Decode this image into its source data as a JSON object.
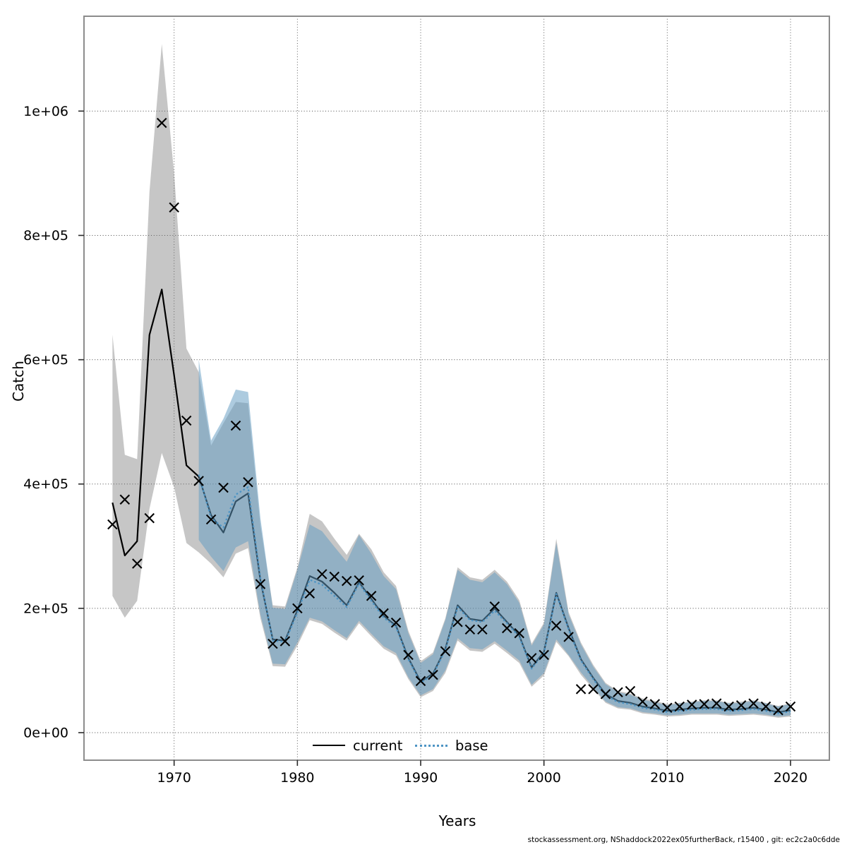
{
  "figure": {
    "xlabel": "Years",
    "ylabel": "Catch",
    "footer": "stockassessment.org, NShaddock2022ex05furtherBack, r15400 , git: ec2c2a0c6dde"
  },
  "chart_data": {
    "type": "line",
    "title": "",
    "xlabel": "Years",
    "ylabel": "Catch",
    "grid": true,
    "legend_position": "bottom-center-inside",
    "xlim": [
      1962.69,
      2023.15
    ],
    "ylim": [
      -44300,
      1152600
    ],
    "x_ticks": [
      {
        "value": 1970,
        "label": "1970"
      },
      {
        "value": 1980,
        "label": "1980"
      },
      {
        "value": 1990,
        "label": "1990"
      },
      {
        "value": 2000,
        "label": "2000"
      },
      {
        "value": 2010,
        "label": "2010"
      },
      {
        "value": 2020,
        "label": "2020"
      }
    ],
    "y_ticks": [
      {
        "value": 0,
        "label": "0e+00"
      },
      {
        "value": 200000,
        "label": "2e+05"
      },
      {
        "value": 400000,
        "label": "4e+05"
      },
      {
        "value": 600000,
        "label": "6e+05"
      },
      {
        "value": 800000,
        "label": "8e+05"
      },
      {
        "value": 1000000,
        "label": "1e+06"
      }
    ],
    "colors": {
      "current_line": "#000000",
      "current_band": "rgba(120,120,120,0.42)",
      "base_line": "#4d94c4",
      "base_band": "rgba(98,156,194,0.52)",
      "marker": "#000000",
      "grid": "#4a4a4a",
      "frame": "#8c8c8c"
    },
    "legend": {
      "entries": [
        {
          "label": "current",
          "line_style": "solid",
          "color": "#000000"
        },
        {
          "label": "base",
          "line_style": "dotted",
          "color": "#4d94c4"
        }
      ]
    },
    "series": [
      {
        "name": "observed-catch",
        "type": "scatter",
        "marker": "x",
        "years": [
          1965,
          1966,
          1967,
          1968,
          1969,
          1970,
          1971,
          1972,
          1973,
          1974,
          1975,
          1976,
          1977,
          1978,
          1979,
          1980,
          1981,
          1982,
          1983,
          1984,
          1985,
          1986,
          1987,
          1988,
          1989,
          1990,
          1991,
          1992,
          1993,
          1994,
          1995,
          1996,
          1997,
          1998,
          1999,
          2000,
          2001,
          2002,
          2003,
          2004,
          2005,
          2006,
          2007,
          2008,
          2009,
          2010,
          2011,
          2012,
          2013,
          2014,
          2015,
          2016,
          2017,
          2018,
          2019,
          2020
        ],
        "values": [
          335000,
          375000,
          272000,
          345000,
          981000,
          845000,
          502000,
          405000,
          343000,
          394000,
          494000,
          403000,
          239000,
          143000,
          147000,
          200000,
          224000,
          255000,
          251000,
          244000,
          245000,
          220000,
          192000,
          177000,
          125000,
          83000,
          93000,
          131000,
          178000,
          166000,
          166000,
          203000,
          168000,
          160000,
          120000,
          125000,
          172000,
          154000,
          70000,
          70000,
          62000,
          65000,
          67000,
          50000,
          46000,
          40000,
          42000,
          45000,
          46000,
          47000,
          42000,
          44000,
          47000,
          42000,
          36000,
          42000
        ]
      },
      {
        "name": "current",
        "type": "line-with-ci",
        "line_style": "solid",
        "years": [
          1965,
          1966,
          1967,
          1968,
          1969,
          1970,
          1971,
          1972,
          1973,
          1974,
          1975,
          1976,
          1977,
          1978,
          1979,
          1980,
          1981,
          1982,
          1983,
          1984,
          1985,
          1986,
          1987,
          1988,
          1989,
          1990,
          1991,
          1992,
          1993,
          1994,
          1995,
          1996,
          1997,
          1998,
          1999,
          2000,
          2001,
          2002,
          2003,
          2004,
          2005,
          2006,
          2007,
          2008,
          2009,
          2010,
          2011,
          2012,
          2013,
          2014,
          2015,
          2016,
          2017,
          2018,
          2019,
          2020
        ],
        "values": [
          370000,
          285000,
          308000,
          640000,
          713000,
          575000,
          430000,
          412000,
          350000,
          322000,
          372000,
          385000,
          245000,
          150000,
          148000,
          197000,
          252000,
          243000,
          225000,
          205000,
          242000,
          215000,
          188000,
          172000,
          120000,
          82000,
          95000,
          135000,
          205000,
          183000,
          180000,
          200000,
          178000,
          156000,
          105000,
          130000,
          225000,
          168000,
          118000,
          88000,
          62000,
          51000,
          48000,
          42000,
          39000,
          35000,
          37000,
          39000,
          40000,
          40000,
          37000,
          38000,
          40000,
          37000,
          33000,
          36000
        ],
        "ci_low": [
          220000,
          185000,
          212000,
          360000,
          450000,
          395000,
          305000,
          290000,
          272000,
          250000,
          288000,
          297000,
          184000,
          107000,
          106000,
          140000,
          181000,
          175000,
          161000,
          148000,
          176000,
          155000,
          135000,
          124000,
          86000,
          57000,
          67000,
          96000,
          148000,
          132000,
          130000,
          143000,
          128000,
          112000,
          74000,
          92000,
          146000,
          123000,
          93000,
          70000,
          48000,
          39000,
          37000,
          31000,
          29000,
          26000,
          27000,
          29000,
          29000,
          29000,
          27000,
          28000,
          29000,
          27000,
          24000,
          26000
        ],
        "ci_high": [
          640000,
          447000,
          440000,
          870000,
          1108000,
          900000,
          618000,
          580000,
          462000,
          498000,
          532000,
          530000,
          334000,
          205000,
          203000,
          266000,
          352000,
          340000,
          312000,
          286000,
          320000,
          295000,
          258000,
          236000,
          164000,
          115000,
          129000,
          184000,
          266000,
          250000,
          246000,
          262000,
          243000,
          213000,
          143000,
          177000,
          312000,
          194000,
          145000,
          109000,
          80000,
          67000,
          63000,
          55000,
          51000,
          46000,
          48000,
          50000,
          52000,
          52000,
          48000,
          50000,
          52000,
          48000,
          43000,
          47000
        ]
      },
      {
        "name": "base",
        "type": "line-with-ci",
        "line_style": "dotted",
        "years": [
          1972,
          1973,
          1974,
          1975,
          1976,
          1977,
          1978,
          1979,
          1980,
          1981,
          1982,
          1983,
          1984,
          1985,
          1986,
          1987,
          1988,
          1989,
          1990,
          1991,
          1992,
          1993,
          1994,
          1995,
          1996,
          1997,
          1998,
          1999,
          2000,
          2001,
          2002,
          2003,
          2004,
          2005,
          2006,
          2007,
          2008,
          2009,
          2010,
          2011,
          2012,
          2013,
          2014,
          2015,
          2016,
          2017,
          2018,
          2019,
          2020
        ],
        "values": [
          415000,
          345000,
          330000,
          383000,
          395000,
          248000,
          148000,
          146000,
          193000,
          246000,
          238000,
          220000,
          202000,
          240000,
          212000,
          185000,
          170000,
          118000,
          80000,
          93000,
          133000,
          202000,
          181000,
          178000,
          196000,
          176000,
          154000,
          103000,
          128000,
          223000,
          166000,
          116000,
          86000,
          60000,
          49000,
          46000,
          40000,
          37000,
          33000,
          35000,
          37000,
          38000,
          38000,
          35000,
          36000,
          38000,
          35000,
          31000,
          34000
        ],
        "ci_low": [
          310000,
          283000,
          260000,
          298000,
          308000,
          190000,
          111000,
          110000,
          145000,
          185000,
          179000,
          165000,
          152000,
          180000,
          159000,
          139000,
          128000,
          89000,
          60000,
          70000,
          100000,
          152000,
          136000,
          134000,
          147000,
          132000,
          116000,
          77000,
          96000,
          150000,
          125000,
          97000,
          73000,
          50000,
          41000,
          39000,
          33000,
          31000,
          28000,
          29000,
          31000,
          31000,
          31000,
          29000,
          30000,
          31000,
          29000,
          26000,
          28000
        ],
        "ci_high": [
          600000,
          470000,
          505000,
          552000,
          548000,
          345000,
          201000,
          199000,
          262000,
          335000,
          324000,
          299000,
          275000,
          318000,
          288000,
          252000,
          231000,
          160000,
          112000,
          126000,
          181000,
          262000,
          246000,
          242000,
          258000,
          239000,
          209000,
          140000,
          174000,
          305000,
          190000,
          142000,
          106000,
          78000,
          65000,
          61000,
          53000,
          49000,
          44000,
          47000,
          49000,
          51000,
          51000,
          47000,
          48000,
          51000,
          47000,
          42000,
          46000
        ]
      }
    ],
    "footer": "stockassessment.org, NShaddock2022ex05furtherBack, r15400 , git: ec2c2a0c6dde"
  }
}
